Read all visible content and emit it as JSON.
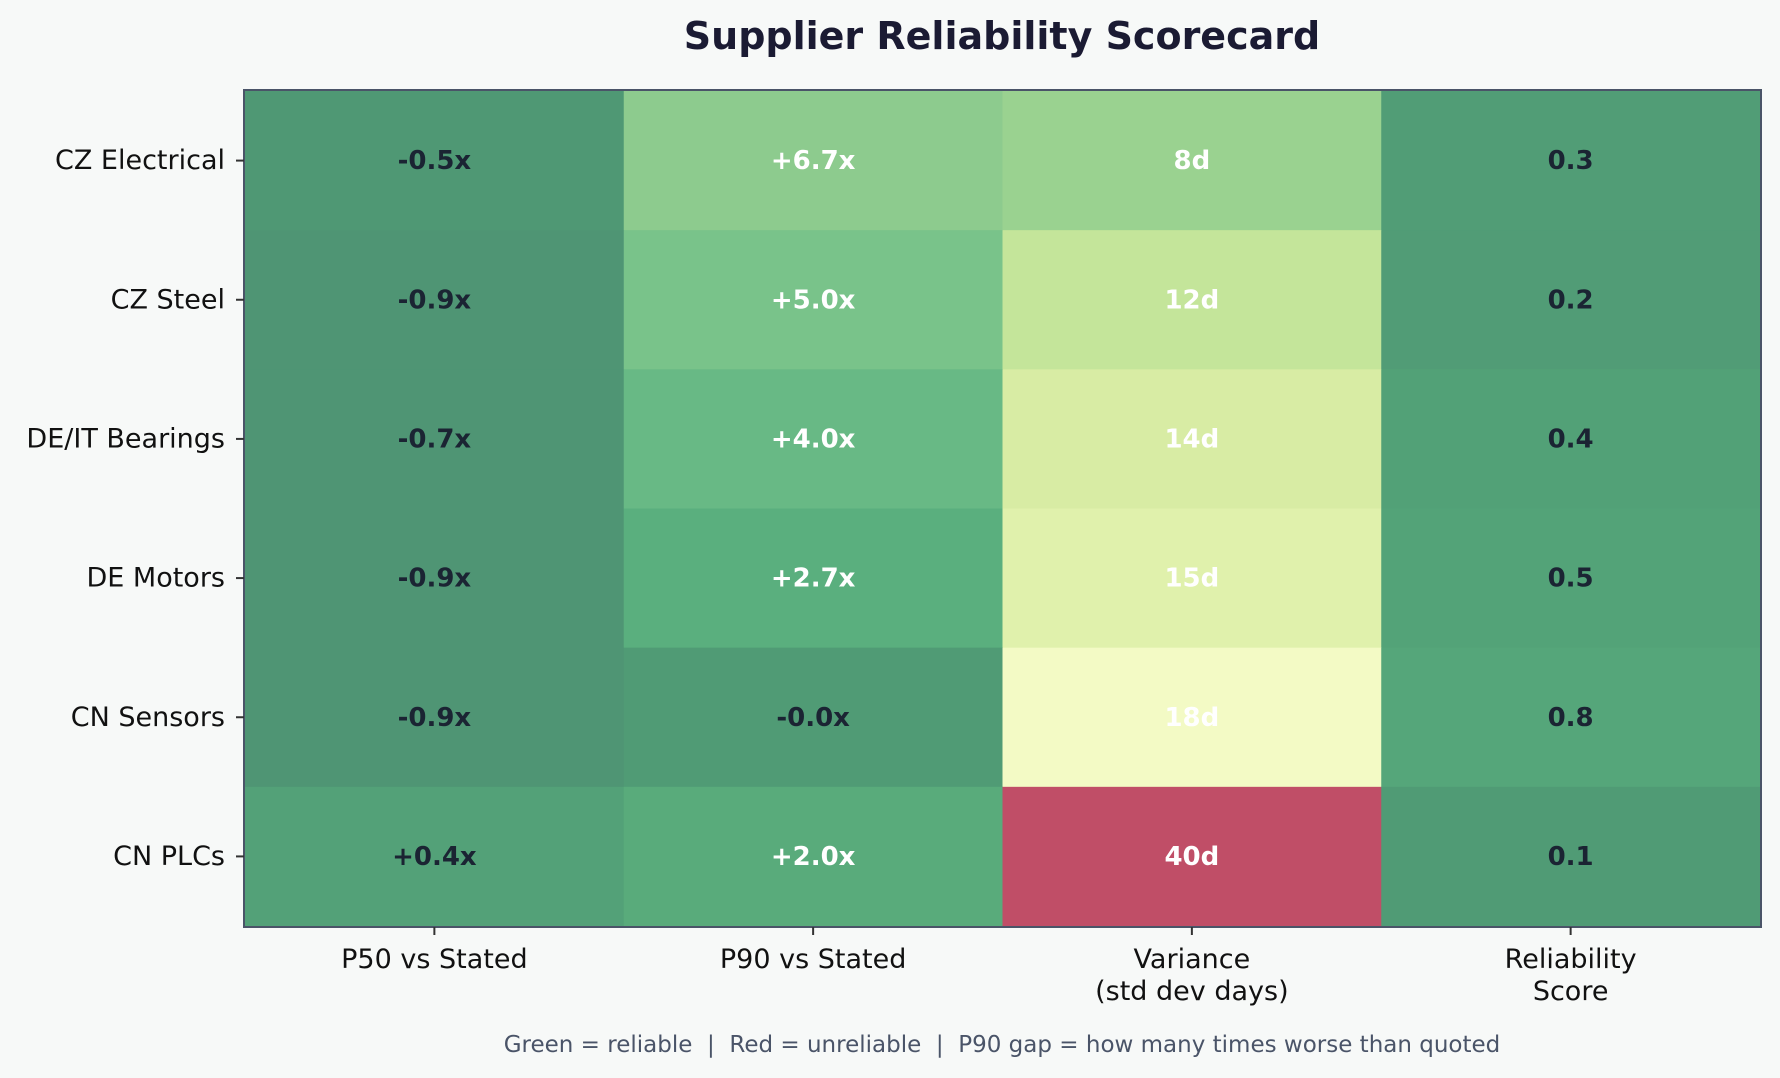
{
  "chart_data": {
    "type": "heatmap",
    "title": "Supplier Reliability Scorecard",
    "rows": [
      "CZ Electrical",
      "CZ Steel",
      "DE/IT Bearings",
      "DE Motors",
      "CN Sensors",
      "CN PLCs"
    ],
    "columns": [
      [
        "P50 vs Stated"
      ],
      [
        "P90 vs Stated"
      ],
      [
        "Variance",
        "(std dev days)"
      ],
      [
        "Reliability",
        "Score"
      ]
    ],
    "cells": [
      [
        {
          "label": "-0.5x",
          "color": "#4f9874"
        },
        {
          "label": "+6.7x",
          "color": "#8dcb8e"
        },
        {
          "label": "8d",
          "color": "#9ad290"
        },
        {
          "label": "0.3",
          "color": "#519d76"
        }
      ],
      [
        {
          "label": "-0.9x",
          "color": "#4f9574"
        },
        {
          "label": "+5.0x",
          "color": "#79c38a"
        },
        {
          "label": "12d",
          "color": "#c4e59a"
        },
        {
          "label": "0.2",
          "color": "#519c76"
        }
      ],
      [
        {
          "label": "-0.7x",
          "color": "#4f9574"
        },
        {
          "label": "+4.0x",
          "color": "#68b985"
        },
        {
          "label": "14d",
          "color": "#d8eca4"
        },
        {
          "label": "0.4",
          "color": "#52a177"
        }
      ],
      [
        {
          "label": "-0.9x",
          "color": "#4f9574"
        },
        {
          "label": "+2.7x",
          "color": "#5aaf7e"
        },
        {
          "label": "15d",
          "color": "#e0f1ac"
        },
        {
          "label": "0.5",
          "color": "#53a378"
        }
      ],
      [
        {
          "label": "-0.9x",
          "color": "#4f9574"
        },
        {
          "label": "-0.0x",
          "color": "#509b75"
        },
        {
          "label": "18d",
          "color": "#f3fac5"
        },
        {
          "label": "0.8",
          "color": "#55a67a"
        }
      ],
      [
        {
          "label": "+0.4x",
          "color": "#53a178"
        },
        {
          "label": "+2.0x",
          "color": "#59ab7b"
        },
        {
          "label": "40d",
          "color": "#c04e67"
        },
        {
          "label": "0.1",
          "color": "#509b75"
        }
      ]
    ],
    "label_colors": [
      [
        "#1b2433",
        "#ffffff",
        "#ffffff",
        "#1b2433"
      ],
      [
        "#1b2433",
        "#ffffff",
        "#ffffff",
        "#1b2433"
      ],
      [
        "#1b2433",
        "#ffffff",
        "#ffffff",
        "#1b2433"
      ],
      [
        "#1b2433",
        "#ffffff",
        "#ffffff",
        "#1b2433"
      ],
      [
        "#1b2433",
        "#1b2433",
        "#ffffff",
        "#1b2433"
      ],
      [
        "#1b2433",
        "#ffffff",
        "#ffffff",
        "#1b2433"
      ]
    ],
    "footnote": "Green = reliable  |  Red = unreliable  |  P90 gap = how many times worse than quoted"
  }
}
